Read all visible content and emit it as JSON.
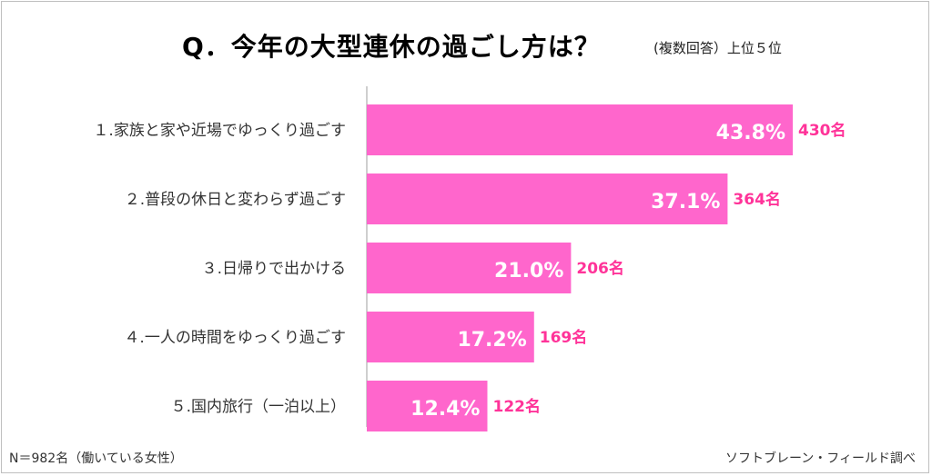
{
  "title": "Q．今年の大型連休の過ごし方は？",
  "subtitle": "(複数回答）上位５位",
  "footer": {
    "note": "N＝982名（働いている女性）",
    "source": "ソフトブレーン・フィールド調べ"
  },
  "colors": {
    "bar": "#ff66cc",
    "count_text": "#ff3399",
    "bar_label": "#ffffff",
    "axis": "#bfbfbf",
    "category_text": "#333333"
  },
  "chart_data": {
    "type": "bar",
    "orientation": "horizontal",
    "categories": [
      "１.家族と家や近場でゆっくり過ごす",
      "２.普段の休日と変わらず過ごす",
      "３.日帰りで出かける",
      "４.一人の時間をゆっくり過ごす",
      "５.国内旅行（一泊以上）"
    ],
    "values": [
      43.8,
      37.1,
      21.0,
      17.2,
      12.4
    ],
    "value_labels": [
      "43.8%",
      "37.1%",
      "21.0%",
      "17.2%",
      "12.4%"
    ],
    "counts": [
      "430名",
      "364名",
      "206名",
      "169名",
      "122名"
    ],
    "xlim": [
      0,
      50
    ],
    "grid": false,
    "legend": "none"
  }
}
